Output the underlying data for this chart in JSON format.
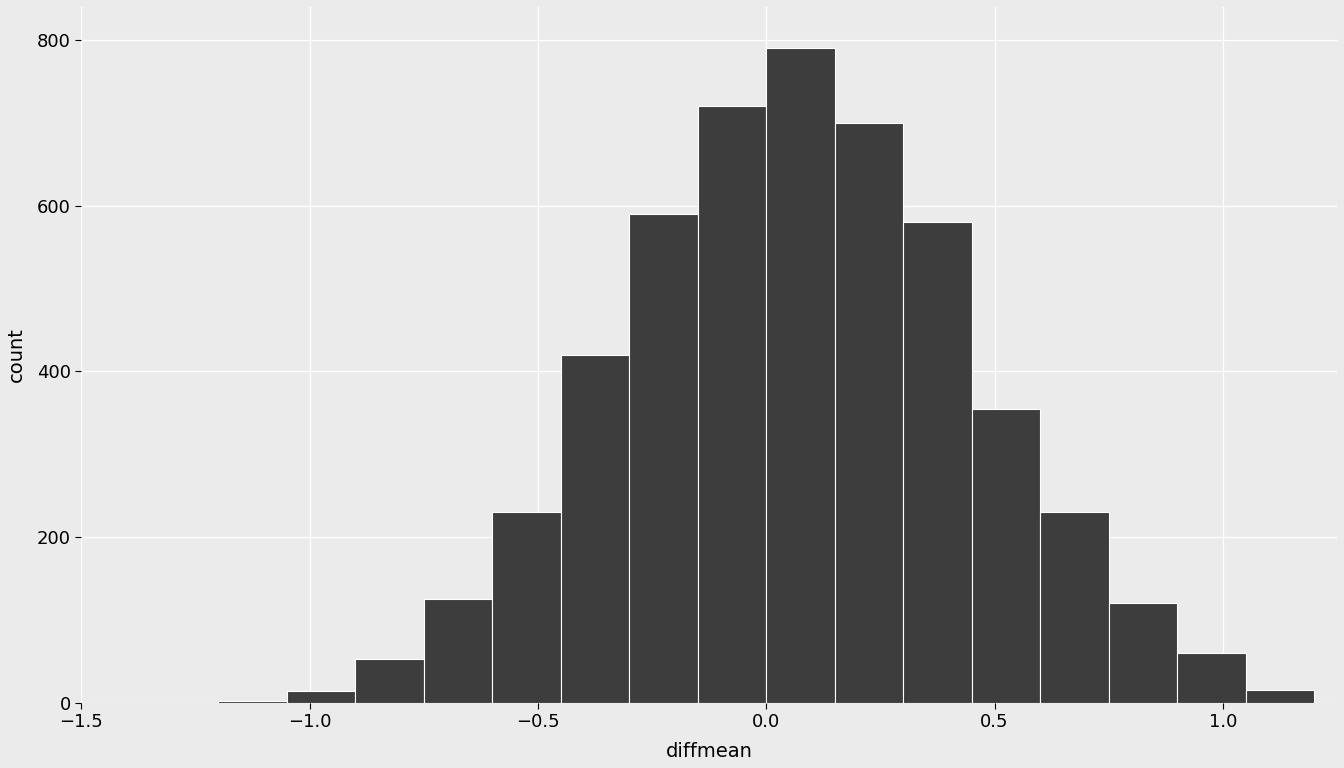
{
  "bin_edges": [
    -1.2,
    -1.05,
    -0.9,
    -0.75,
    -0.6,
    -0.45,
    -0.3,
    -0.15,
    0.0,
    0.15,
    0.3,
    0.45,
    0.6,
    0.75,
    0.9,
    1.05
  ],
  "counts": [
    2,
    14,
    52,
    125,
    230,
    420,
    590,
    720,
    790,
    700,
    580,
    355,
    230,
    120,
    60,
    15
  ],
  "bar_color": "#3d3d3d",
  "bar_edgecolor": "#ffffff",
  "background_color": "#ebebeb",
  "panel_color": "#ebebeb",
  "xlabel": "diffmean",
  "ylabel": "count",
  "xlim": [
    -1.5,
    1.25
  ],
  "ylim": [
    0,
    840
  ],
  "xticks": [
    -1.5,
    -1.0,
    -0.5,
    0.0,
    0.5,
    1.0
  ],
  "yticks": [
    0,
    200,
    400,
    600,
    800
  ],
  "grid_color": "#ffffff",
  "tick_label_fontsize": 13,
  "axis_label_fontsize": 14
}
